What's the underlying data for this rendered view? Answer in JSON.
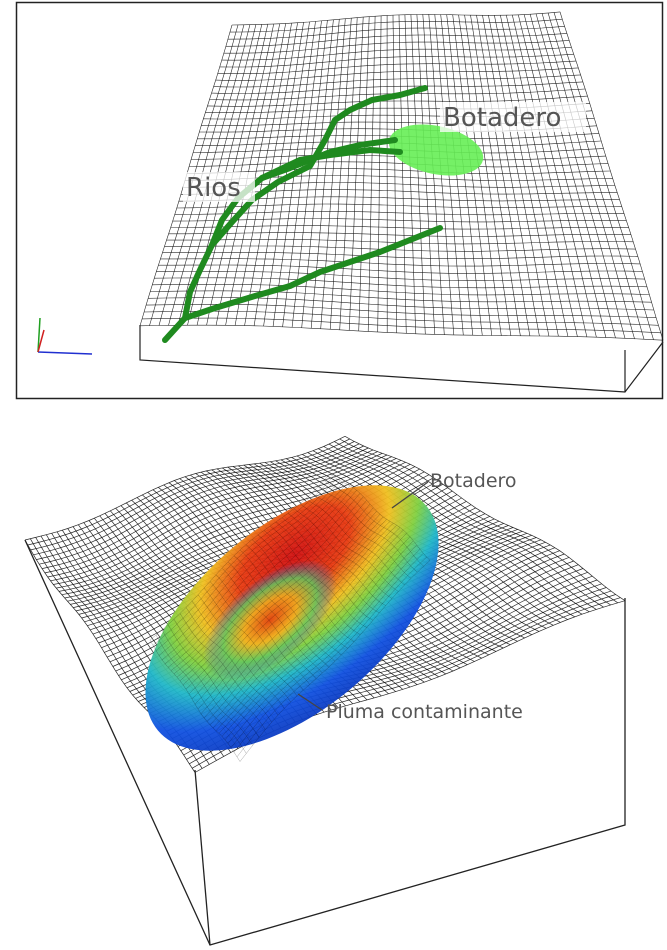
{
  "top_panel": {
    "labels": {
      "botadero": "Botadero",
      "rios": "Rios"
    }
  },
  "bottom_panel": {
    "labels": {
      "botadero": "Botadero",
      "pluma": "Pluma contaminante"
    }
  }
}
